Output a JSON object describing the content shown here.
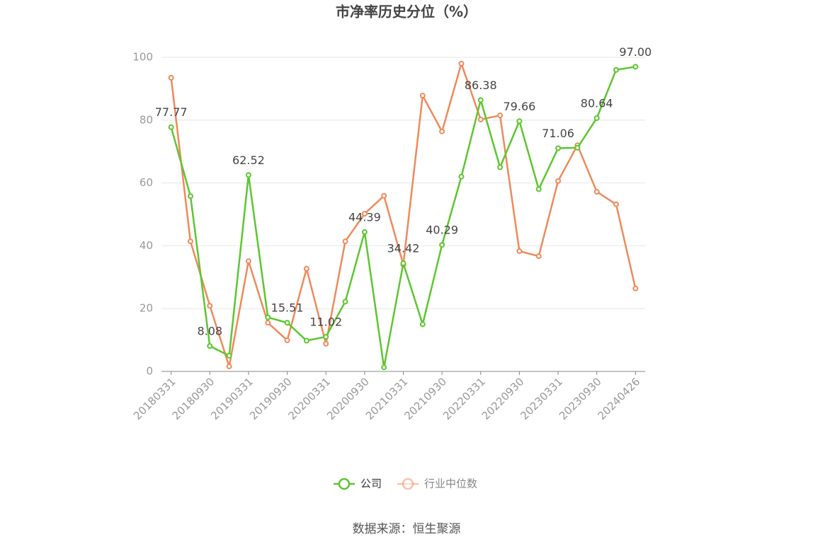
{
  "chart_data": {
    "type": "line",
    "title": "市净率历史分位（%）",
    "categories": [
      "20180331",
      null,
      "20180930",
      null,
      "20190331",
      null,
      "20190930",
      null,
      "20200331",
      null,
      "20200930",
      null,
      "20210331",
      null,
      "20210930",
      null,
      "20220331",
      null,
      "20220930",
      null,
      "20230331",
      null,
      "20230930",
      null,
      "20240426"
    ],
    "series": [
      {
        "name": "公司",
        "color": "#5cc62f",
        "values": [
          77.77,
          55.8,
          8.08,
          5.0,
          62.52,
          17.2,
          15.51,
          9.8,
          11.02,
          22.2,
          44.39,
          1.3,
          34.42,
          15.0,
          40.29,
          62.0,
          86.38,
          65.0,
          79.66,
          58.0,
          71.06,
          71.2,
          80.64,
          96.0,
          97
        ],
        "value_labels": [
          "77.77",
          null,
          "8.08",
          null,
          "62.52",
          null,
          "15.51",
          null,
          "11.02",
          null,
          "44.39",
          null,
          "34.42",
          null,
          "40.29",
          null,
          "86.38",
          null,
          "79.66",
          null,
          "71.06",
          null,
          "80.64",
          null,
          "97.00"
        ]
      },
      {
        "name": "行业中位数",
        "color": "#f0895a",
        "values": [
          93.5,
          41.4,
          20.9,
          1.6,
          35.1,
          15.5,
          9.9,
          32.7,
          8.8,
          41.4,
          50.2,
          55.9,
          34.0,
          87.8,
          76.4,
          98.0,
          80.2,
          81.5,
          38.3,
          36.7,
          60.6,
          72.0,
          57.2,
          53.2,
          26.4
        ]
      }
    ],
    "ylim": [
      0,
      100
    ],
    "yticks": [
      0,
      20,
      40,
      60,
      80,
      100
    ],
    "grid": true,
    "source": "数据来源：恒生聚源"
  }
}
